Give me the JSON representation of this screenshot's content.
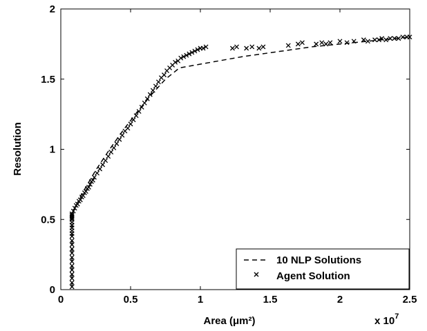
{
  "chart_data": {
    "type": "scatter",
    "xlabel": "Area (μm²)",
    "ylabel": "Resolution",
    "x_multiplier_label": "x 10",
    "x_multiplier_exponent": "7",
    "xlim": [
      0,
      25000000
    ],
    "ylim": [
      0,
      2
    ],
    "x_ticks": [
      0,
      5000000,
      10000000,
      15000000,
      20000000,
      25000000
    ],
    "x_tick_labels": [
      "0",
      "0.5",
      "1",
      "1.5",
      "2",
      "2.5"
    ],
    "y_ticks": [
      0,
      0.5,
      1,
      1.5,
      2
    ],
    "y_tick_labels": [
      "0",
      "0.5",
      "1",
      "1.5",
      "2"
    ],
    "grid": false,
    "legend_position": "bottom-right",
    "series": [
      {
        "name": "10 NLP Solutions",
        "style": "dashed-line",
        "x": [
          800000,
          800000,
          800000,
          800000,
          900000,
          1500000,
          2500000,
          3500000,
          4500000,
          5500000,
          6500000,
          7500000,
          8500000,
          13000000,
          18000000,
          25000000
        ],
        "y": [
          0.02,
          0.15,
          0.35,
          0.52,
          0.56,
          0.68,
          0.85,
          1.0,
          1.14,
          1.27,
          1.39,
          1.5,
          1.58,
          1.66,
          1.73,
          1.8
        ]
      },
      {
        "name": "Agent Solution",
        "style": "x-markers",
        "x": [
          800000,
          800000,
          800000,
          800000,
          800000,
          800000,
          800000,
          800000,
          800000,
          800000,
          800000,
          800000,
          800000,
          800000,
          800000,
          800000,
          800000,
          800000,
          800000,
          800000,
          800000,
          800000,
          800000,
          900000,
          1000000,
          1100000,
          1200000,
          1300000,
          1400000,
          1500000,
          1600000,
          1700000,
          1800000,
          1900000,
          2000000,
          2100000,
          2200000,
          2300000,
          2400000,
          2600000,
          2800000,
          3000000,
          3200000,
          3400000,
          3600000,
          3800000,
          4000000,
          4200000,
          4400000,
          4600000,
          4800000,
          5000000,
          5200000,
          5400000,
          5600000,
          5800000,
          6000000,
          6200000,
          6400000,
          6600000,
          6800000,
          7000000,
          7200000,
          7400000,
          7600000,
          7800000,
          8000000,
          8200000,
          8400000,
          8600000,
          8800000,
          9000000,
          9200000,
          9400000,
          9600000,
          9800000,
          10000000,
          10200000,
          10400000,
          12300000,
          12600000,
          13300000,
          13700000,
          14200000,
          14500000,
          16300000,
          17000000,
          17300000,
          18300000,
          18700000,
          19000000,
          19300000,
          20000000,
          20500000,
          21000000,
          21700000,
          22000000,
          22500000,
          22800000,
          23000000,
          23300000,
          23600000,
          23900000,
          24200000,
          24500000,
          24800000,
          25000000
        ],
        "y": [
          0.02,
          0.05,
          0.08,
          0.11,
          0.14,
          0.17,
          0.2,
          0.23,
          0.26,
          0.29,
          0.32,
          0.35,
          0.38,
          0.4,
          0.42,
          0.44,
          0.46,
          0.48,
          0.5,
          0.51,
          0.52,
          0.53,
          0.54,
          0.56,
          0.58,
          0.6,
          0.61,
          0.63,
          0.64,
          0.66,
          0.67,
          0.69,
          0.7,
          0.72,
          0.73,
          0.75,
          0.77,
          0.78,
          0.8,
          0.83,
          0.86,
          0.89,
          0.92,
          0.95,
          0.98,
          1.01,
          1.04,
          1.07,
          1.1,
          1.13,
          1.15,
          1.18,
          1.21,
          1.24,
          1.27,
          1.3,
          1.33,
          1.36,
          1.39,
          1.42,
          1.45,
          1.48,
          1.51,
          1.53,
          1.56,
          1.58,
          1.6,
          1.62,
          1.63,
          1.65,
          1.66,
          1.67,
          1.68,
          1.69,
          1.7,
          1.71,
          1.72,
          1.72,
          1.73,
          1.72,
          1.73,
          1.72,
          1.73,
          1.72,
          1.73,
          1.74,
          1.75,
          1.76,
          1.75,
          1.76,
          1.75,
          1.76,
          1.77,
          1.76,
          1.77,
          1.78,
          1.77,
          1.78,
          1.78,
          1.79,
          1.78,
          1.79,
          1.79,
          1.79,
          1.8,
          1.8,
          1.8
        ]
      }
    ]
  }
}
